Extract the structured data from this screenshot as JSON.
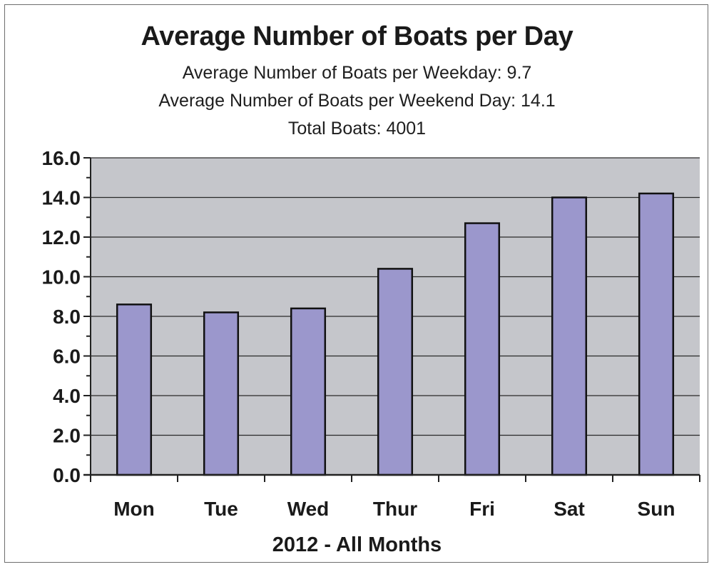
{
  "chart_data": {
    "type": "bar",
    "title": "Average Number of Boats per Day",
    "subtitles": [
      "Average Number of Boats per Weekday:  9.7",
      "Average Number of Boats per Weekend Day:  14.1",
      "Total Boats: 4001"
    ],
    "xlabel": "2012 - All Months",
    "ylabel": "",
    "categories": [
      "Mon",
      "Tue",
      "Wed",
      "Thur",
      "Fri",
      "Sat",
      "Sun"
    ],
    "values": [
      8.6,
      8.2,
      8.4,
      10.4,
      12.7,
      14.0,
      14.2
    ],
    "ylim": [
      0,
      16
    ],
    "yticks": [
      "0.0",
      "2.0",
      "4.0",
      "6.0",
      "8.0",
      "10.0",
      "12.0",
      "14.0",
      "16.0"
    ],
    "grid": true,
    "legend": "none",
    "colors": {
      "bar": "#9b97cc",
      "bar_edge": "#111111",
      "plot_bg": "#c5c6cb",
      "grid": "#2a2a2a"
    }
  }
}
